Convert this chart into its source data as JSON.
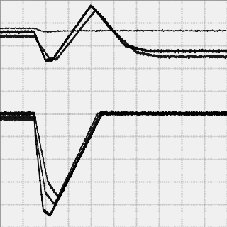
{
  "background_color": "#f0f0f0",
  "grid_color": "#999999",
  "line_color": "#000000",
  "fig_width": 3.2,
  "fig_height": 3.2,
  "dpi": 100,
  "xlim": [
    0,
    10
  ],
  "ylim": [
    -10,
    10
  ],
  "zero_line_y": 0.0,
  "grid_nx": 10,
  "grid_ny": 10
}
